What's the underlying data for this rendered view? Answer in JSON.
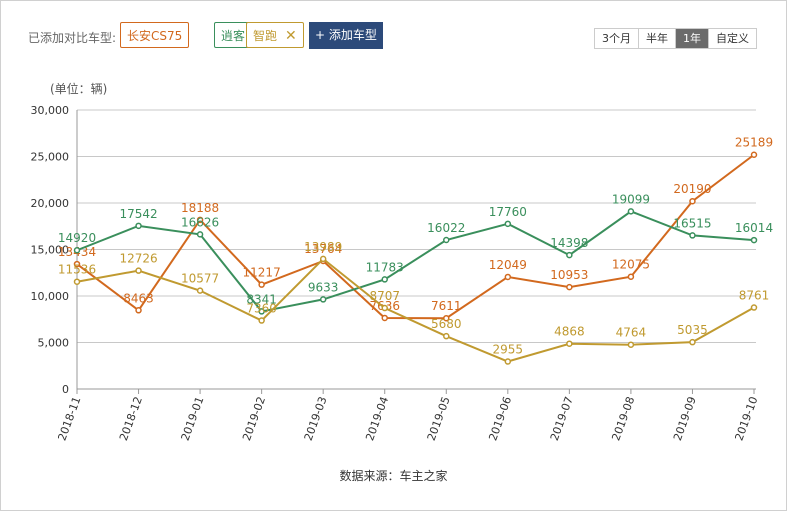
{
  "toolbar": {
    "label": "已添加对比车型:",
    "tags": [
      {
        "label": "长安CS75",
        "color": "#d2691e",
        "closable": false
      },
      {
        "label": "逍客",
        "color": "#3a8f5c",
        "closable": true
      },
      {
        "label": "智跑",
        "color": "#c09a30",
        "closable": true
      }
    ],
    "add_label": "+ 添加车型",
    "ranges": [
      {
        "label": "3个月",
        "active": false
      },
      {
        "label": "半年",
        "active": false
      },
      {
        "label": "1年",
        "active": true
      },
      {
        "label": "自定义",
        "active": false
      }
    ]
  },
  "chart_data": {
    "type": "line",
    "unit_label": "(单位：辆)",
    "categories": [
      "2018-11",
      "2018-12",
      "2019-01",
      "2019-02",
      "2019-03",
      "2019-04",
      "2019-05",
      "2019-06",
      "2019-07",
      "2019-08",
      "2019-09",
      "2019-10"
    ],
    "ylim": [
      0,
      30000
    ],
    "yticks": [
      "0",
      "5,000",
      "10,000",
      "15,000",
      "20,000",
      "25,000",
      "30,000"
    ],
    "grid": true,
    "series": [
      {
        "name": "长安CS75",
        "color": "#d2691e",
        "values": [
          13434,
          8463,
          18188,
          11217,
          13764,
          7636,
          7611,
          12049,
          10953,
          12075,
          20190,
          25189
        ]
      },
      {
        "name": "逍客",
        "color": "#3a8f5c",
        "values": [
          14920,
          17542,
          16626,
          8341,
          9633,
          11783,
          16022,
          17760,
          14398,
          19099,
          16515,
          16014
        ]
      },
      {
        "name": "智跑",
        "color": "#c09a30",
        "values": [
          11536,
          12726,
          10577,
          7360,
          13989,
          8707,
          5680,
          2955,
          4868,
          4764,
          5035,
          8761
        ]
      }
    ],
    "source": "数据来源：车主之家"
  }
}
